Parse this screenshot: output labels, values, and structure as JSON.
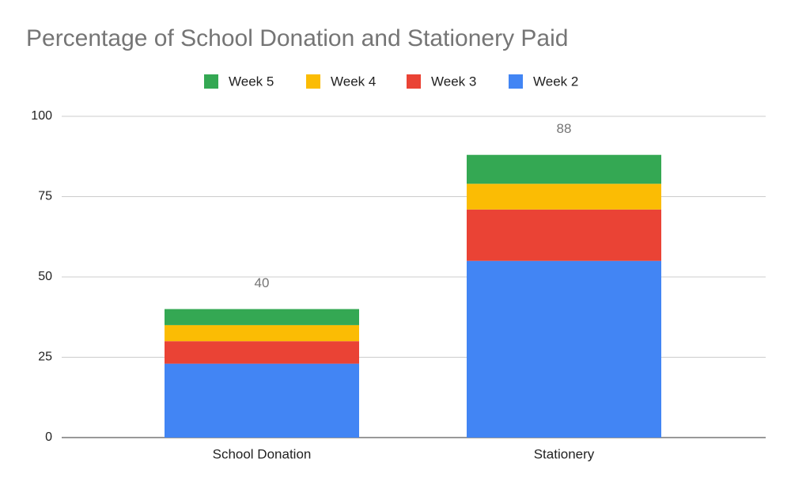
{
  "chart_data": {
    "type": "stacked_bar",
    "title": "Percentage of School Donation and Stationery Paid",
    "categories": [
      "School Donation",
      "Stationery"
    ],
    "series": [
      {
        "name": "Week 2",
        "color": "#4285f4",
        "values": [
          23,
          55
        ]
      },
      {
        "name": "Week 3",
        "color": "#ea4335",
        "values": [
          7,
          16
        ]
      },
      {
        "name": "Week 4",
        "color": "#fbbc04",
        "values": [
          5,
          8
        ]
      },
      {
        "name": "Week 5",
        "color": "#34a853",
        "values": [
          5,
          9
        ]
      }
    ],
    "totals": [
      40,
      88
    ],
    "ylim": [
      0,
      100
    ],
    "yticks": [
      0,
      25,
      50,
      75,
      100
    ],
    "grid": true,
    "legend": "top"
  }
}
